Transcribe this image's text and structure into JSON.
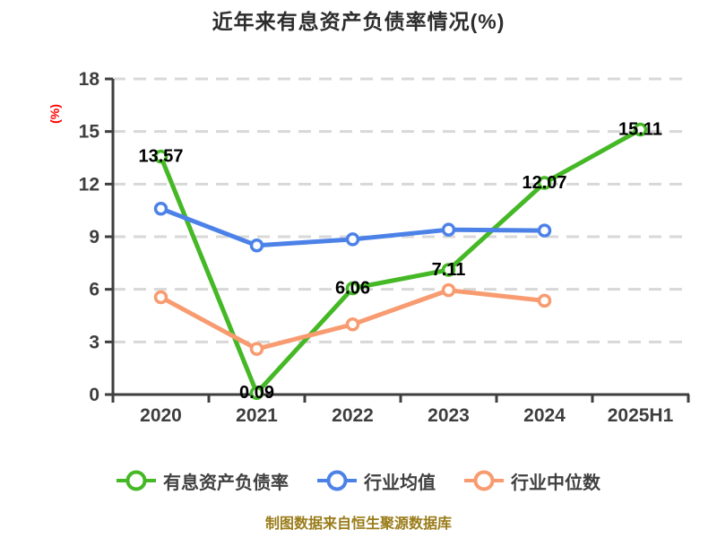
{
  "page": {
    "footer": "制图数据来自恒生聚源数据库",
    "footer_color": "#9A7C1A"
  },
  "chart_data": {
    "type": "line",
    "title": "近年来有息资产负债率情况(%)",
    "ylabel": "(%)",
    "ylabel_color": "#FF0000",
    "xlabel": "",
    "ylim": [
      0,
      18
    ],
    "yticks": [
      0,
      3,
      6,
      9,
      12,
      15,
      18
    ],
    "categories": [
      "2020",
      "2021",
      "2022",
      "2023",
      "2024",
      "2025H1"
    ],
    "grid": "horizontal-dashed",
    "legend_position": "bottom",
    "style": {
      "axis_color": "#3E3E3E",
      "grid_color": "#D8D8D8",
      "tick_label_color": "#3E3E3E",
      "value_label_color": "#000000"
    },
    "series": [
      {
        "key": "interest-bearing-debt-ratio",
        "name": "有息资产负债率",
        "color": "#45B826",
        "values": [
          13.57,
          0.09,
          6.06,
          7.11,
          12.07,
          15.11
        ],
        "labels": [
          "13.57",
          "0.09",
          "6.06",
          "7.11",
          "12.07",
          "15.11"
        ]
      },
      {
        "key": "industry-average",
        "name": "行业均值",
        "color": "#4C82E8",
        "values": [
          10.6,
          8.5,
          8.85,
          9.4,
          9.35,
          null
        ],
        "labels": null
      },
      {
        "key": "industry-median",
        "name": "行业中位数",
        "color": "#F89B70",
        "values": [
          5.55,
          2.6,
          4.0,
          5.95,
          5.35,
          null
        ],
        "labels": null
      }
    ]
  }
}
